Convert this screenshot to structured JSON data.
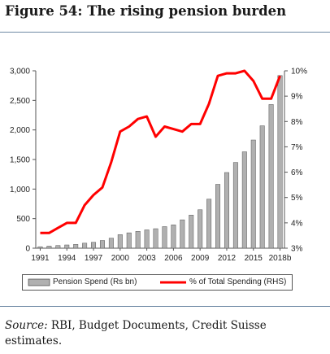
{
  "figure": {
    "title": "Figure 54: The rising pension burden",
    "source_label": "Source:",
    "source_text": "RBI, Budget Documents, Credit Suisse estimates."
  },
  "chart_data": {
    "type": "bar+line",
    "title": "",
    "categories": [
      "1991",
      "1992",
      "1993",
      "1994",
      "1995",
      "1996",
      "1997",
      "1998",
      "1999",
      "2000",
      "2001",
      "2002",
      "2003",
      "2004",
      "2005",
      "2006",
      "2007",
      "2008",
      "2009",
      "2010",
      "2011",
      "2012",
      "2013",
      "2014",
      "2015",
      "2016",
      "2017",
      "2018b"
    ],
    "x_tick_labels": [
      "1991",
      "1994",
      "1997",
      "2000",
      "2003",
      "2006",
      "2009",
      "2012",
      "2015",
      "2018b"
    ],
    "series": [
      {
        "name": "Pension Spend (Rs bn)",
        "type": "bar",
        "axis": "left",
        "color": "#b0b0b0",
        "values": [
          25,
          35,
          45,
          55,
          65,
          85,
          100,
          130,
          170,
          230,
          260,
          285,
          310,
          330,
          365,
          395,
          480,
          560,
          650,
          830,
          1080,
          1280,
          1450,
          1630,
          1830,
          2070,
          2430,
          2920
        ]
      },
      {
        "name": "% of Total Spending (RHS)",
        "type": "line",
        "axis": "right",
        "color": "#ff0000",
        "values": [
          3.6,
          3.6,
          3.8,
          4.0,
          4.0,
          4.7,
          5.1,
          5.4,
          6.4,
          7.6,
          7.8,
          8.1,
          8.2,
          7.4,
          7.8,
          7.7,
          7.6,
          7.9,
          7.9,
          8.7,
          9.8,
          9.9,
          9.9,
          10.0,
          9.6,
          8.9,
          8.9,
          9.8
        ]
      }
    ],
    "y_left": {
      "min": 0,
      "max": 3000,
      "ticks": [
        "0",
        "500",
        "1,000",
        "1,500",
        "2,000",
        "2,500",
        "3,000"
      ]
    },
    "y_right": {
      "min": 3,
      "max": 10,
      "ticks": [
        "3%",
        "4%",
        "5%",
        "6%",
        "7%",
        "8%",
        "9%",
        "10%"
      ]
    },
    "grid": false,
    "legend_position": "bottom"
  }
}
